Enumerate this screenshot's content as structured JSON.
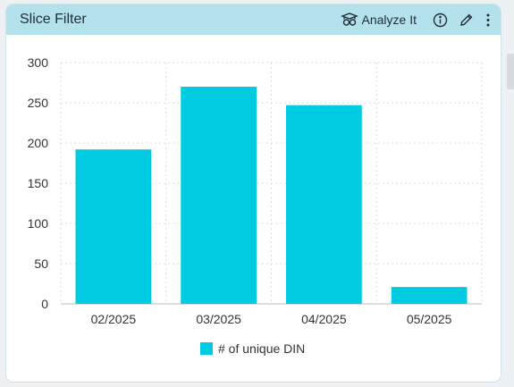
{
  "card": {
    "title": "Slice Filter",
    "analyze_label": "Analyze It",
    "icons": {
      "analyze": "analyze-ai-icon",
      "info": "info-icon",
      "edit": "pencil-icon",
      "more": "more-vertical-icon"
    }
  },
  "colors": {
    "bar": "#00cbe1",
    "header_bg": "#b3e1ec",
    "grid": "#dedede"
  },
  "chart_data": {
    "type": "bar",
    "categories": [
      "02/2025",
      "03/2025",
      "04/2025",
      "05/2025"
    ],
    "series": [
      {
        "name": "# of unique DIN",
        "values": [
          192,
          270,
          247,
          21
        ]
      }
    ],
    "ylim": [
      0,
      300
    ],
    "yticks": [
      0,
      50,
      100,
      150,
      200,
      250,
      300
    ],
    "grid": true,
    "legend": "bottom"
  }
}
